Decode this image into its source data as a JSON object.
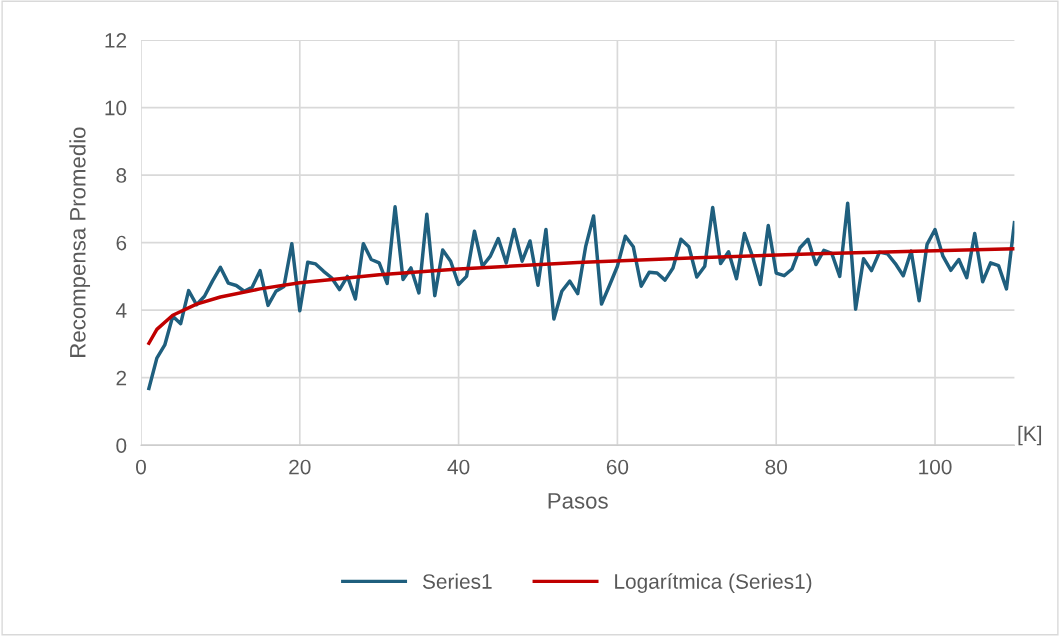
{
  "chart_data": {
    "type": "line",
    "xlabel": "Pasos",
    "ylabel": "Recompensa Promedio",
    "annotations": [
      "[K]"
    ],
    "x": [
      1,
      2,
      3,
      4,
      5,
      6,
      7,
      8,
      9,
      10,
      11,
      12,
      13,
      14,
      15,
      16,
      17,
      18,
      19,
      20,
      21,
      22,
      23,
      24,
      25,
      26,
      27,
      28,
      29,
      30,
      31,
      32,
      33,
      34,
      35,
      36,
      37,
      38,
      39,
      40,
      41,
      42,
      43,
      44,
      45,
      46,
      47,
      48,
      49,
      50,
      51,
      52,
      53,
      54,
      55,
      56,
      57,
      58,
      59,
      60,
      61,
      62,
      63,
      64,
      65,
      66,
      67,
      68,
      69,
      70,
      71,
      72,
      73,
      74,
      75,
      76,
      77,
      78,
      79,
      80,
      81,
      82,
      83,
      84,
      85,
      86,
      87,
      88,
      89,
      90,
      91,
      92,
      93,
      94,
      95,
      96,
      97,
      98,
      99,
      100,
      101,
      102,
      103,
      104,
      105,
      106,
      107,
      108,
      109,
      110
    ],
    "series": [
      {
        "name": "Series1",
        "color": "#1f5f7e",
        "values": [
          1.68,
          2.58,
          2.97,
          3.82,
          3.6,
          4.58,
          4.16,
          4.41,
          4.86,
          5.27,
          4.8,
          4.73,
          4.56,
          4.68,
          5.17,
          4.14,
          4.56,
          4.7,
          5.97,
          3.98,
          5.42,
          5.37,
          5.15,
          4.96,
          4.61,
          5.0,
          4.33,
          5.97,
          5.5,
          5.4,
          4.79,
          7.06,
          4.91,
          5.25,
          4.51,
          6.84,
          4.43,
          5.78,
          5.45,
          4.76,
          5.0,
          6.34,
          5.3,
          5.6,
          6.12,
          5.4,
          6.39,
          5.45,
          6.05,
          4.74,
          6.39,
          3.74,
          4.56,
          4.86,
          4.49,
          5.88,
          6.79,
          4.18,
          4.73,
          5.3,
          6.19,
          5.88,
          4.71,
          5.12,
          5.1,
          4.89,
          5.25,
          6.1,
          5.88,
          4.98,
          5.3,
          7.04,
          5.38,
          5.73,
          4.93,
          6.27,
          5.6,
          4.76,
          6.51,
          5.1,
          5.02,
          5.22,
          5.85,
          6.1,
          5.35,
          5.77,
          5.68,
          5.0,
          7.17,
          4.03,
          5.52,
          5.17,
          5.72,
          5.67,
          5.38,
          5.02,
          5.75,
          4.28,
          5.95,
          6.39,
          5.6,
          5.18,
          5.5,
          4.96,
          6.27,
          4.84,
          5.4,
          5.32,
          4.63,
          6.59
        ]
      },
      {
        "name": "Logarítmica (Series1)",
        "color": "#c00000",
        "x": [
          1,
          2,
          4,
          7,
          10,
          15,
          20,
          30,
          40,
          55,
          70,
          85,
          100,
          110
        ],
        "values": [
          3.02,
          3.43,
          3.85,
          4.18,
          4.39,
          4.63,
          4.81,
          5.05,
          5.22,
          5.41,
          5.55,
          5.67,
          5.76,
          5.82
        ]
      }
    ],
    "xlim": [
      0,
      110
    ],
    "xticks": [
      0,
      20,
      40,
      60,
      80,
      100
    ],
    "ylim": [
      0,
      12
    ],
    "yticks": [
      0,
      2,
      4,
      6,
      8,
      10,
      12
    ],
    "grid": true,
    "legend": "bottom",
    "line_style": "solid",
    "marker": "none"
  }
}
